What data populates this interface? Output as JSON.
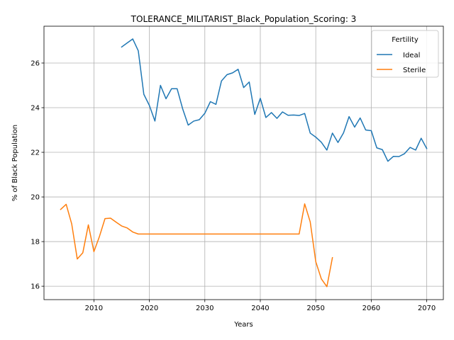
{
  "chart_data": {
    "type": "line",
    "title": "TOLERANCE_MILITARIST_Black_Population_Scoring: 3",
    "xlabel": "Years",
    "ylabel": "% of Black Population",
    "xlim": [
      2001,
      2073
    ],
    "ylim": [
      15.4,
      27.65
    ],
    "xticks": [
      2010,
      2020,
      2030,
      2040,
      2050,
      2060,
      2070
    ],
    "yticks": [
      16,
      18,
      20,
      22,
      24,
      26
    ],
    "grid": true,
    "legend": {
      "title": "Fertility",
      "placement": "top-right"
    },
    "series": [
      {
        "name": "Ideal",
        "color": "#1f77b4",
        "x": [
          2015,
          2016,
          2017,
          2018,
          2019,
          2020,
          2021,
          2022,
          2023,
          2024,
          2025,
          2026,
          2027,
          2028,
          2029,
          2030,
          2031,
          2032,
          2033,
          2034,
          2035,
          2036,
          2037,
          2038,
          2039,
          2040,
          2041,
          2042,
          2043,
          2044,
          2045,
          2046,
          2047,
          2048,
          2049,
          2050,
          2051,
          2052,
          2053,
          2054,
          2055,
          2056,
          2057,
          2058,
          2059,
          2060,
          2061,
          2062,
          2063,
          2064,
          2065,
          2066,
          2067,
          2068,
          2069,
          2070
        ],
        "y": [
          26.72,
          26.9,
          27.08,
          26.55,
          24.6,
          24.1,
          23.4,
          25.0,
          24.4,
          24.85,
          24.85,
          23.95,
          23.22,
          23.4,
          23.46,
          23.75,
          24.27,
          24.15,
          25.2,
          25.48,
          25.56,
          25.72,
          24.9,
          25.15,
          23.7,
          24.42,
          23.56,
          23.78,
          23.52,
          23.81,
          23.66,
          23.67,
          23.65,
          23.74,
          22.86,
          22.68,
          22.45,
          22.1,
          22.86,
          22.44,
          22.87,
          23.6,
          23.13,
          23.54,
          23.0,
          22.97,
          22.2,
          22.12,
          21.6,
          21.82,
          21.81,
          21.94,
          22.22,
          22.1,
          22.63,
          22.17
        ]
      },
      {
        "name": "Sterile",
        "color": "#ff7f0e",
        "x": [
          2004,
          2005,
          2006,
          2007,
          2008,
          2009,
          2010,
          2011,
          2012,
          2013,
          2014,
          2015,
          2016,
          2017,
          2018,
          2019,
          2020,
          2021,
          2022,
          2023,
          2024,
          2025,
          2026,
          2027,
          2028,
          2029,
          2030,
          2031,
          2032,
          2033,
          2034,
          2035,
          2036,
          2037,
          2038,
          2039,
          2040,
          2041,
          2042,
          2043,
          2044,
          2045,
          2046,
          2047,
          2048,
          2049,
          2050,
          2051,
          2052,
          2053
        ],
        "y": [
          19.44,
          19.67,
          18.79,
          17.22,
          17.5,
          18.75,
          17.55,
          18.23,
          19.03,
          19.05,
          18.87,
          18.7,
          18.61,
          18.43,
          18.34,
          18.34,
          18.34,
          18.34,
          18.34,
          18.34,
          18.34,
          18.34,
          18.34,
          18.34,
          18.34,
          18.34,
          18.34,
          18.34,
          18.34,
          18.34,
          18.34,
          18.34,
          18.34,
          18.34,
          18.34,
          18.34,
          18.34,
          18.34,
          18.34,
          18.34,
          18.34,
          18.34,
          18.34,
          18.34,
          19.69,
          18.88,
          17.1,
          16.33,
          15.98,
          17.28
        ]
      }
    ]
  }
}
